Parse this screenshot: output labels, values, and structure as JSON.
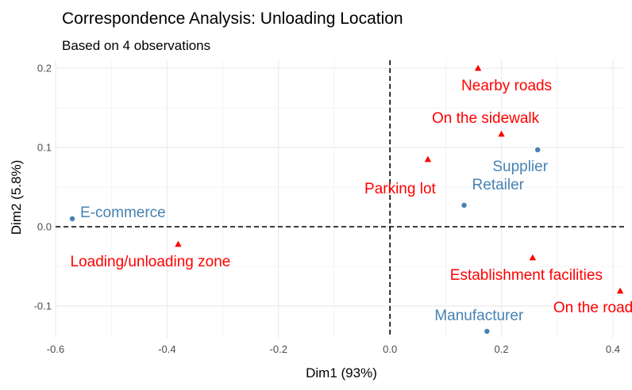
{
  "chart_data": {
    "type": "scatter",
    "title": "Correspondence Analysis: Unloading Location",
    "subtitle": "Based on 4 observations",
    "xlabel": "Dim1 (93%)",
    "ylabel": "Dim2 (5.8%)",
    "xlim": [
      -0.6,
      0.42
    ],
    "ylim": [
      -0.14,
      0.21
    ],
    "x_ticks": [
      -0.6,
      -0.4,
      -0.2,
      0.0,
      0.2,
      0.4
    ],
    "x_tick_labels": [
      "-0.6",
      "-0.4",
      "-0.2",
      "0.0",
      "0.2",
      "0.4"
    ],
    "y_ticks": [
      -0.1,
      0.0,
      0.1,
      0.2
    ],
    "y_tick_labels": [
      "-0.1",
      "0.0",
      "0.1",
      "0.2"
    ],
    "grid": true,
    "reference_lines": {
      "x": 0,
      "y": 0,
      "style": "dashed"
    },
    "colors": {
      "row": "#4682b4",
      "col": "#ff0000",
      "grid": "#ebebeb"
    },
    "series": [
      {
        "group": "row",
        "marker": "circle",
        "points": [
          {
            "label": "E-commerce",
            "x": -0.57,
            "y": 0.01
          },
          {
            "label": "Supplier",
            "x": 0.265,
            "y": 0.097
          },
          {
            "label": "Retailer",
            "x": 0.133,
            "y": 0.027
          },
          {
            "label": "Manufacturer",
            "x": 0.174,
            "y": -0.132
          }
        ]
      },
      {
        "group": "col",
        "marker": "triangle",
        "points": [
          {
            "label": "Nearby roads",
            "x": 0.158,
            "y": 0.2
          },
          {
            "label": "On the sidewalk",
            "x": 0.2,
            "y": 0.117
          },
          {
            "label": "Parking lot",
            "x": 0.068,
            "y": 0.085
          },
          {
            "label": "Loading/unloading zone",
            "x": -0.38,
            "y": -0.022
          },
          {
            "label": "Establishment facilities",
            "x": 0.256,
            "y": -0.039
          },
          {
            "label": "On the road",
            "x": 0.413,
            "y": -0.081
          }
        ]
      }
    ]
  }
}
